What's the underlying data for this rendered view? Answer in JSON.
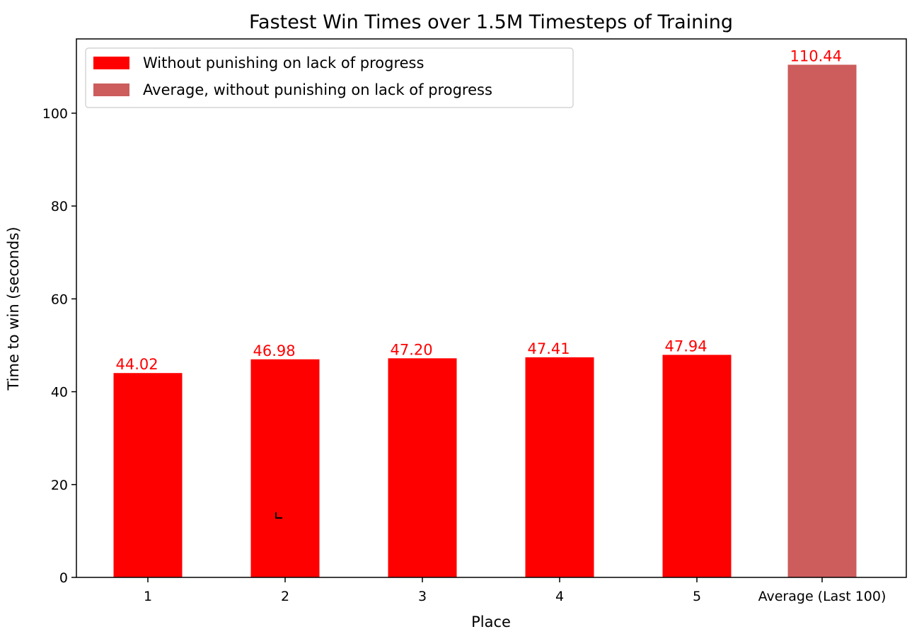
{
  "chart_data": {
    "type": "bar",
    "title": "Fastest Win Times over 1.5M Timesteps of Training",
    "xlabel": "Place",
    "ylabel": "Time to win (seconds)",
    "categories": [
      "1",
      "2",
      "3",
      "4",
      "5",
      "Average (Last 100)"
    ],
    "values": [
      44.02,
      46.98,
      47.2,
      47.41,
      47.94,
      110.44
    ],
    "value_labels": [
      "44.02",
      "46.98",
      "47.20",
      "47.41",
      "47.94",
      "110.44"
    ],
    "bar_series": [
      0,
      0,
      0,
      0,
      0,
      1
    ],
    "series": [
      {
        "name": "Without punishing on lack of progress",
        "color": "#ff0000"
      },
      {
        "name": "Average, without punishing on lack of progress",
        "color": "#cd5c5c"
      }
    ],
    "yticks": [
      0,
      20,
      40,
      60,
      80,
      100
    ],
    "ylim": [
      0,
      116
    ],
    "grid": false,
    "legend": "top-left",
    "data_label_color": "#ff0000"
  }
}
